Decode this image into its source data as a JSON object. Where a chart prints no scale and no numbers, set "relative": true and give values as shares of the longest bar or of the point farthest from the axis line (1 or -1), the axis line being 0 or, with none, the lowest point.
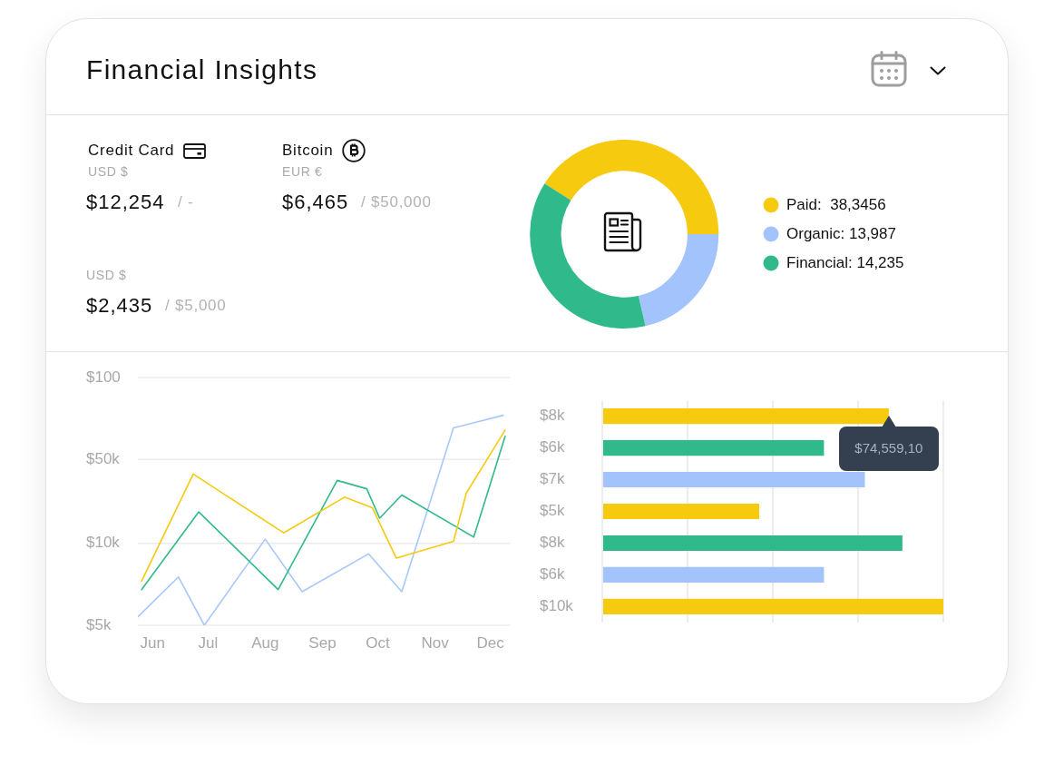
{
  "chart_data": [
    {
      "type": "other",
      "title": "Financial Insights",
      "annotations": [
        "Credit Card",
        "USD $",
        "$12,254",
        "/ -",
        "Bitcoin",
        "EUR €",
        "$6,465",
        "/ $50,000",
        "USD $",
        "$2,435",
        "/ $5,000"
      ]
    },
    {
      "type": "donut",
      "categories": [
        "Paid:  38,3456",
        "Organic: 13,987",
        "Financial: 14,235"
      ],
      "values": [
        41.0,
        21.4,
        37.6
      ],
      "colors": [
        "#f6ca0f",
        "#a2c3fb",
        "#30b98b"
      ],
      "legend": "right"
    },
    {
      "type": "line",
      "relative": true,
      "series": [
        {
          "color": "#f6ca0f",
          "x": [
            "--05-26",
            "--06-23",
            "--08-11",
            "--09-13",
            "--09-28",
            "--10-11",
            "--11-11",
            "--11-18",
            "--12-09"
          ],
          "values": [
            0.21,
            0.72,
            0.44,
            0.61,
            0.56,
            0.32,
            0.4,
            0.63,
            0.93
          ]
        },
        {
          "color": "#30b98b",
          "x": [
            "--05-26",
            "--06-26",
            "--08-08",
            "--09-09",
            "--09-25",
            "--10-02",
            "--10-14",
            "--11-22",
            "--12-09"
          ],
          "values": [
            0.17,
            0.54,
            0.17,
            0.69,
            0.65,
            0.51,
            0.62,
            0.42,
            0.9
          ]
        },
        {
          "color": "#a8c7fb",
          "x": [
            "--05-24",
            "--06-15",
            "--06-29",
            "--08-01",
            "--08-21",
            "--09-26",
            "--10-14",
            "--11-11",
            "--12-08"
          ],
          "values": [
            0.04,
            0.23,
            0.0,
            0.41,
            0.16,
            0.34,
            0.16,
            0.94,
            1
          ]
        }
      ],
      "xlim": [
        "--05-24",
        "--12-12"
      ],
      "xticks": [
        {
          "value": "--06-01",
          "label": "Jun"
        },
        {
          "value": "--07-01",
          "label": "Jul"
        },
        {
          "value": "--08-01",
          "label": "Aug"
        },
        {
          "value": "--09-01",
          "label": "Sep"
        },
        {
          "value": "--10-01",
          "label": "Oct"
        },
        {
          "value": "--11-01",
          "label": "Nov"
        },
        {
          "value": "--12-01",
          "label": "Dec"
        }
      ],
      "ref_lines": [
        {
          "axis": "y",
          "value": 0,
          "color": "#ececec"
        },
        {
          "axis": "y",
          "value": 0.39,
          "color": "#ececec"
        },
        {
          "axis": "y",
          "value": 0.79,
          "color": "#ececec"
        },
        {
          "axis": "y",
          "value": 1.18,
          "color": "#ececec"
        }
      ],
      "annotations": [
        "$5k",
        "$10k",
        "$50k",
        "$100"
      ]
    },
    {
      "type": "bar",
      "orientation": "horizontal",
      "relative": true,
      "categories": [
        "$8k",
        "$6k",
        "$7k",
        "$5k",
        "$8k",
        "$6k",
        "$10k"
      ],
      "values": [
        0.84,
        0.65,
        0.77,
        0.46,
        0.88,
        0.65,
        1
      ],
      "colors": [
        "#f6ca0f",
        "#30b98b",
        "#a2c3fb",
        "#f6ca0f",
        "#30b98b",
        "#a2c3fb",
        "#f6ca0f"
      ],
      "grid": "x",
      "annotations": [
        {
          "text": "$74,559,10",
          "x": 0.84,
          "y": "$8k"
        }
      ]
    }
  ]
}
